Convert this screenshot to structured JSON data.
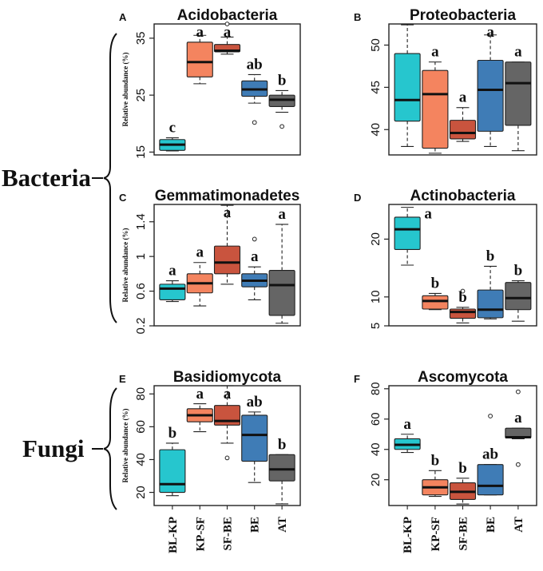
{
  "chart_data": {
    "type": "boxplot",
    "y_label": "Relative abundance (%)",
    "categories": [
      "BL-KP",
      "KP-SF",
      "SF-BE",
      "BE",
      "AT"
    ],
    "colors": {
      "BL-KP": "#26C6CE",
      "KP-SF": "#F4845F",
      "SF-BE": "#C9543E",
      "BE": "#3F7CB6",
      "AT": "#656565"
    },
    "groups": [
      {
        "label": "Bacteria",
        "panels": [
          "A",
          "B",
          "C",
          "D"
        ]
      },
      {
        "label": "Fungi",
        "panels": [
          "E",
          "F"
        ]
      }
    ],
    "panels": [
      {
        "letter": "A",
        "title": "Acidobacteria",
        "ylim": [
          14.5,
          37.5
        ],
        "yticks": [
          15,
          25,
          35
        ],
        "show_ylabel": true,
        "boxes": [
          {
            "category": "BL-KP",
            "whisker_low": 15.2,
            "q1": 15.3,
            "median": 16.3,
            "q3": 17.2,
            "whisker_high": 17.5,
            "outliers": [],
            "letter": "c"
          },
          {
            "category": "KP-SF",
            "whisker_low": 27.0,
            "q1": 28.2,
            "median": 30.8,
            "q3": 34.3,
            "whisker_high": 35.5,
            "outliers": [],
            "letter": "a"
          },
          {
            "category": "SF-BE",
            "whisker_low": 32.2,
            "q1": 32.6,
            "median": 32.8,
            "q3": 33.9,
            "whisker_high": 35.2,
            "outliers": [
              37.5
            ],
            "letter": "a"
          },
          {
            "category": "BE",
            "whisker_low": 23.6,
            "q1": 24.8,
            "median": 26.0,
            "q3": 27.5,
            "whisker_high": 28.6,
            "outliers": [
              20.2
            ],
            "letter": "ab"
          },
          {
            "category": "AT",
            "whisker_low": 22.0,
            "q1": 23.0,
            "median": 24.2,
            "q3": 25.0,
            "whisker_high": 25.8,
            "outliers": [
              19.5
            ],
            "letter": "b"
          }
        ]
      },
      {
        "letter": "B",
        "title": "Proteobacteria",
        "ylim": [
          37,
          52.5
        ],
        "yticks": [
          40,
          45,
          50
        ],
        "show_ylabel": false,
        "boxes": [
          {
            "category": "BL-KP",
            "whisker_low": 38.0,
            "q1": 41.0,
            "median": 43.5,
            "q3": 49.0,
            "whisker_high": 52.4,
            "outliers": [],
            "letter": null
          },
          {
            "category": "KP-SF",
            "whisker_low": 37.2,
            "q1": 37.8,
            "median": 44.2,
            "q3": 47.0,
            "whisker_high": 48.0,
            "outliers": [],
            "letter": "a"
          },
          {
            "category": "SF-BE",
            "whisker_low": 38.6,
            "q1": 38.9,
            "median": 39.6,
            "q3": 41.1,
            "whisker_high": 42.6,
            "outliers": [],
            "letter": "a"
          },
          {
            "category": "BE",
            "whisker_low": 38.0,
            "q1": 39.8,
            "median": 44.7,
            "q3": 48.2,
            "whisker_high": 51.2,
            "outliers": [],
            "letter": "a"
          },
          {
            "category": "AT",
            "whisker_low": 37.5,
            "q1": 40.5,
            "median": 45.5,
            "q3": 48.0,
            "whisker_high": 48.0,
            "outliers": [],
            "letter": "a"
          }
        ]
      },
      {
        "letter": "C",
        "title": "Gemmatimonadetes",
        "ylim": [
          0.2,
          1.6
        ],
        "yticks": [
          0.2,
          0.6,
          1.0,
          1.4
        ],
        "show_ylabel": true,
        "boxes": [
          {
            "category": "BL-KP",
            "whisker_low": 0.48,
            "q1": 0.5,
            "median": 0.63,
            "q3": 0.68,
            "whisker_high": 0.72,
            "outliers": [],
            "letter": "a"
          },
          {
            "category": "KP-SF",
            "whisker_low": 0.43,
            "q1": 0.58,
            "median": 0.69,
            "q3": 0.8,
            "whisker_high": 0.93,
            "outliers": [],
            "letter": "a"
          },
          {
            "category": "SF-BE",
            "whisker_low": 0.68,
            "q1": 0.8,
            "median": 0.93,
            "q3": 1.12,
            "whisker_high": 1.59,
            "outliers": [],
            "letter": "a"
          },
          {
            "category": "BE",
            "whisker_low": 0.5,
            "q1": 0.65,
            "median": 0.72,
            "q3": 0.8,
            "whisker_high": 0.88,
            "outliers": [
              1.2
            ],
            "letter": "a"
          },
          {
            "category": "AT",
            "whisker_low": 0.23,
            "q1": 0.32,
            "median": 0.67,
            "q3": 0.84,
            "whisker_high": 1.37,
            "outliers": [],
            "letter": "a"
          }
        ]
      },
      {
        "letter": "D",
        "title": "Actinobacteria",
        "ylim": [
          5,
          26
        ],
        "yticks": [
          5,
          10,
          20
        ],
        "show_ylabel": false,
        "boxes": [
          {
            "category": "BL-KP",
            "whisker_low": 15.5,
            "q1": 18.2,
            "median": 21.7,
            "q3": 23.8,
            "whisker_high": 25.5,
            "outliers": [],
            "letter": "a"
          },
          {
            "category": "KP-SF",
            "whisker_low": 7.8,
            "q1": 7.9,
            "median": 9.3,
            "q3": 10.2,
            "whisker_high": 10.6,
            "outliers": [],
            "letter": "b"
          },
          {
            "category": "SF-BE",
            "whisker_low": 5.5,
            "q1": 6.3,
            "median": 7.4,
            "q3": 7.9,
            "whisker_high": 8.2,
            "outliers": [
              11.0
            ],
            "letter": "b"
          },
          {
            "category": "BE",
            "whisker_low": 6.2,
            "q1": 6.4,
            "median": 7.8,
            "q3": 11.2,
            "whisker_high": 15.3,
            "outliers": [],
            "letter": "b"
          },
          {
            "category": "AT",
            "whisker_low": 5.8,
            "q1": 7.8,
            "median": 9.8,
            "q3": 12.5,
            "whisker_high": 12.8,
            "outliers": [],
            "letter": "b"
          }
        ]
      },
      {
        "letter": "E",
        "title": "Basidiomycota",
        "ylim": [
          12,
          85
        ],
        "yticks": [
          20,
          40,
          60,
          80
        ],
        "show_ylabel": true,
        "boxes": [
          {
            "category": "BL-KP",
            "whisker_low": 18.0,
            "q1": 20.0,
            "median": 25.0,
            "q3": 46.0,
            "whisker_high": 50.0,
            "outliers": [],
            "letter": "b"
          },
          {
            "category": "KP-SF",
            "whisker_low": 57.0,
            "q1": 63.0,
            "median": 67.0,
            "q3": 71.0,
            "whisker_high": 74.0,
            "outliers": [],
            "letter": "a"
          },
          {
            "category": "SF-BE",
            "whisker_low": 50.0,
            "q1": 61.0,
            "median": 63.5,
            "q3": 73.0,
            "whisker_high": 85.0,
            "outliers": [
              41.0
            ],
            "letter": "a"
          },
          {
            "category": "BE",
            "whisker_low": 26.0,
            "q1": 39.0,
            "median": 55.0,
            "q3": 67.0,
            "whisker_high": 69.0,
            "outliers": [],
            "letter": "ab"
          },
          {
            "category": "AT",
            "whisker_low": 13.0,
            "q1": 27.0,
            "median": 34.0,
            "q3": 43.0,
            "whisker_high": 43.0,
            "outliers": [],
            "letter": "b"
          }
        ]
      },
      {
        "letter": "F",
        "title": "Ascomycota",
        "ylim": [
          3,
          82
        ],
        "yticks": [
          20,
          40,
          60,
          80
        ],
        "show_ylabel": false,
        "boxes": [
          {
            "category": "BL-KP",
            "whisker_low": 38.0,
            "q1": 40.0,
            "median": 43.0,
            "q3": 47.0,
            "whisker_high": 50.0,
            "outliers": [],
            "letter": "a"
          },
          {
            "category": "KP-SF",
            "whisker_low": 9.0,
            "q1": 10.0,
            "median": 15.0,
            "q3": 20.0,
            "whisker_high": 26.0,
            "outliers": [],
            "letter": "b"
          },
          {
            "category": "SF-BE",
            "whisker_low": 4.0,
            "q1": 7.0,
            "median": 12.0,
            "q3": 18.0,
            "whisker_high": 21.0,
            "outliers": [],
            "letter": "b"
          },
          {
            "category": "BE",
            "whisker_low": 10.0,
            "q1": 10.0,
            "median": 16.0,
            "q3": 30.0,
            "whisker_high": 30.0,
            "outliers": [
              62.0
            ],
            "letter": "ab"
          },
          {
            "category": "AT",
            "whisker_low": 47.0,
            "q1": 47.5,
            "median": 48.0,
            "q3": 54.0,
            "whisker_high": 54.0,
            "outliers": [
              78.0,
              30.0
            ],
            "letter": "a"
          }
        ]
      }
    ]
  }
}
